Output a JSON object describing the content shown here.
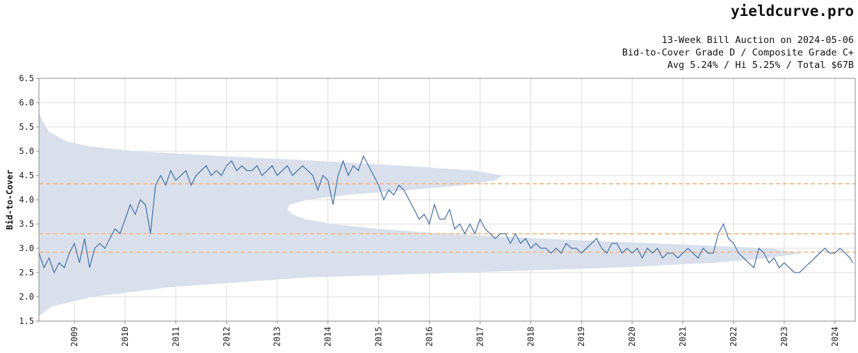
{
  "header": {
    "brand": "yieldcurve.pro",
    "line1": "13-Week Bill Auction on 2024-05-06",
    "line2": "Bid-to-Cover Grade D / Composite Grade C+",
    "line3": "Avg 5.24% / Hi 5.25% / Total $67B"
  },
  "colors": {
    "line": "#4a74a8",
    "density": "#d9e0ec",
    "reference": "#f2bf94",
    "grid": "#dcdcdc",
    "axis": "#888888"
  },
  "chart_data": {
    "type": "line",
    "title": "13-Week Bill Auction on 2024-05-06",
    "ylabel": "Bid-to-Cover",
    "xlabel": "",
    "ylim": [
      1.5,
      6.5
    ],
    "xlim": [
      2008.3,
      2024.4
    ],
    "y_ticks": [
      "1.5",
      "2.0",
      "2.5",
      "3.0",
      "3.5",
      "4.0",
      "4.5",
      "5.0",
      "5.5",
      "6.0",
      "6.5"
    ],
    "x_ticks": [
      "2009",
      "2010",
      "2011",
      "2012",
      "2013",
      "2014",
      "2015",
      "2016",
      "2017",
      "2018",
      "2019",
      "2020",
      "2021",
      "2022",
      "2023",
      "2024"
    ],
    "grid": true,
    "reference_lines": [
      4.33,
      3.3,
      2.92
    ],
    "distribution": {
      "note": "kernel density of bid-to-cover values drawn from the y-axis",
      "y": [
        1.6,
        1.8,
        2.0,
        2.2,
        2.4,
        2.5,
        2.6,
        2.7,
        2.8,
        2.9,
        3.0,
        3.1,
        3.2,
        3.3,
        3.4,
        3.5,
        3.6,
        3.7,
        3.8,
        3.9,
        4.0,
        4.1,
        4.2,
        4.3,
        4.4,
        4.5,
        4.6,
        4.7,
        4.8,
        4.9,
        5.0,
        5.1,
        5.2,
        5.4,
        5.6,
        5.8
      ],
      "extent_year": [
        2008.3,
        2008.55,
        2009.35,
        2010.9,
        2013.6,
        2016.7,
        2019.6,
        2021.6,
        2022.7,
        2023.35,
        2022.7,
        2020.5,
        2018.2,
        2016.3,
        2015.0,
        2014.1,
        2013.55,
        2013.3,
        2013.2,
        2013.25,
        2013.6,
        2014.4,
        2015.6,
        2016.7,
        2017.3,
        2017.45,
        2016.9,
        2015.5,
        2013.8,
        2011.9,
        2010.2,
        2009.3,
        2008.85,
        2008.5,
        2008.38,
        2008.3
      ]
    },
    "series": [
      {
        "x": [
          2008.3,
          2008.4,
          2008.5,
          2008.6,
          2008.7,
          2008.8,
          2008.9,
          2009.0,
          2009.1,
          2009.2,
          2009.3,
          2009.4,
          2009.5,
          2009.6,
          2009.7,
          2009.8,
          2009.9,
          2010.0,
          2010.1,
          2010.2,
          2010.3,
          2010.4,
          2010.5,
          2010.6,
          2010.7,
          2010.8,
          2010.9,
          2011.0,
          2011.1,
          2011.2,
          2011.3,
          2011.4,
          2011.5,
          2011.6,
          2011.7,
          2011.8,
          2011.9,
          2012.0,
          2012.1,
          2012.2,
          2012.3,
          2012.4,
          2012.5,
          2012.6,
          2012.7,
          2012.8,
          2012.9,
          2013.0,
          2013.1,
          2013.2,
          2013.3,
          2013.4,
          2013.5,
          2013.6,
          2013.7,
          2013.8,
          2013.9,
          2014.0,
          2014.1,
          2014.2,
          2014.3,
          2014.4,
          2014.5,
          2014.6,
          2014.7,
          2014.8,
          2014.9,
          2015.0,
          2015.1,
          2015.2,
          2015.3,
          2015.4,
          2015.5,
          2015.6,
          2015.7,
          2015.8,
          2015.9,
          2016.0,
          2016.1,
          2016.2,
          2016.3,
          2016.4,
          2016.5,
          2016.6,
          2016.7,
          2016.8,
          2016.9,
          2017.0,
          2017.1,
          2017.2,
          2017.3,
          2017.4,
          2017.5,
          2017.6,
          2017.7,
          2017.8,
          2017.9,
          2018.0,
          2018.1,
          2018.2,
          2018.3,
          2018.4,
          2018.5,
          2018.6,
          2018.7,
          2018.8,
          2018.9,
          2019.0,
          2019.1,
          2019.2,
          2019.3,
          2019.4,
          2019.5,
          2019.6,
          2019.7,
          2019.8,
          2019.9,
          2020.0,
          2020.1,
          2020.2,
          2020.3,
          2020.4,
          2020.5,
          2020.6,
          2020.7,
          2020.8,
          2020.9,
          2021.0,
          2021.1,
          2021.2,
          2021.3,
          2021.4,
          2021.5,
          2021.6,
          2021.7,
          2021.8,
          2021.9,
          2022.0,
          2022.1,
          2022.2,
          2022.3,
          2022.4,
          2022.5,
          2022.6,
          2022.7,
          2022.8,
          2022.9,
          2023.0,
          2023.1,
          2023.2,
          2023.3,
          2023.4,
          2023.5,
          2023.6,
          2023.7,
          2023.8,
          2023.9,
          2024.0,
          2024.1,
          2024.2,
          2024.3,
          2024.35
        ],
        "values": [
          2.9,
          2.6,
          2.8,
          2.5,
          2.7,
          2.6,
          2.9,
          3.1,
          2.7,
          3.2,
          2.6,
          3.0,
          3.1,
          3.0,
          3.2,
          3.4,
          3.3,
          3.6,
          3.9,
          3.7,
          4.0,
          3.9,
          3.3,
          4.3,
          4.5,
          4.3,
          4.6,
          4.4,
          4.5,
          4.6,
          4.3,
          4.5,
          4.6,
          4.7,
          4.5,
          4.6,
          4.5,
          4.7,
          4.8,
          4.6,
          4.7,
          4.6,
          4.6,
          4.7,
          4.5,
          4.6,
          4.7,
          4.5,
          4.6,
          4.7,
          4.5,
          4.6,
          4.7,
          4.6,
          4.5,
          4.2,
          4.5,
          4.4,
          3.9,
          4.5,
          4.8,
          4.5,
          4.7,
          4.6,
          4.9,
          4.7,
          4.5,
          4.3,
          4.0,
          4.2,
          4.1,
          4.3,
          4.2,
          4.0,
          3.8,
          3.6,
          3.7,
          3.5,
          3.9,
          3.6,
          3.6,
          3.8,
          3.4,
          3.5,
          3.3,
          3.5,
          3.3,
          3.6,
          3.4,
          3.3,
          3.2,
          3.3,
          3.3,
          3.1,
          3.3,
          3.1,
          3.2,
          3.0,
          3.1,
          3.0,
          3.0,
          2.9,
          3.0,
          2.9,
          3.1,
          3.0,
          3.0,
          2.9,
          3.0,
          3.1,
          3.2,
          3.0,
          2.9,
          3.1,
          3.1,
          2.9,
          3.0,
          2.9,
          3.0,
          2.8,
          3.0,
          2.9,
          3.0,
          2.8,
          2.9,
          2.9,
          2.8,
          2.9,
          3.0,
          2.9,
          2.8,
          3.0,
          2.9,
          2.9,
          3.3,
          3.5,
          3.2,
          3.1,
          2.9,
          2.8,
          2.7,
          2.6,
          3.0,
          2.9,
          2.7,
          2.8,
          2.6,
          2.7,
          2.6,
          2.5,
          2.5,
          2.6,
          2.7,
          2.8,
          2.9,
          3.0,
          2.9,
          2.9,
          3.0,
          2.9,
          2.8,
          2.7
        ]
      }
    ]
  }
}
